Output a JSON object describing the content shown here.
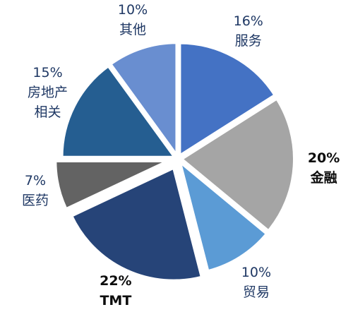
{
  "chart_data": {
    "type": "pie",
    "categories": [
      "服务",
      "金融",
      "贸易",
      "TMT",
      "医药",
      "房地产\n相关",
      "其他"
    ],
    "values": [
      16,
      20,
      10,
      22,
      7,
      15,
      10
    ],
    "value_labels": [
      "16%",
      "20%",
      "10%",
      "22%",
      "7%",
      "15%",
      "10%"
    ],
    "colors": [
      "#4472c4",
      "#a5a5a5",
      "#5b9bd5",
      "#264478",
      "#636363",
      "#255e91",
      "#698ed0"
    ],
    "emphasized": [
      false,
      true,
      false,
      true,
      false,
      false,
      false
    ]
  }
}
